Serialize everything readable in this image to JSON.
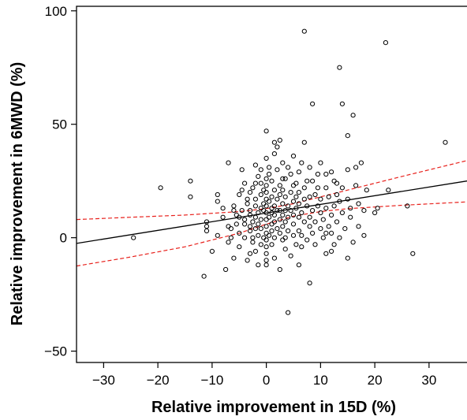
{
  "chart_data": {
    "type": "scatter",
    "title": "",
    "xlabel": "Relative improvement in 15D (%)",
    "ylabel": "Relative improvement in 6MWD (%)",
    "xlim": [
      -35,
      37
    ],
    "ylim": [
      -55,
      102
    ],
    "xticks": [
      -30,
      -20,
      -10,
      0,
      10,
      20,
      30
    ],
    "yticks": [
      -50,
      0,
      50,
      100
    ],
    "xtick_labels": [
      "−30",
      "−20",
      "−10",
      "0",
      "10",
      "20",
      "30"
    ],
    "ytick_labels": [
      "−50",
      "0",
      "50",
      "100"
    ],
    "grid": false,
    "legend": "none",
    "marker": "open-circle",
    "points": [
      [
        -24.5,
        0
      ],
      [
        -19.5,
        22
      ],
      [
        -14,
        25
      ],
      [
        -14,
        18
      ],
      [
        -11.5,
        -17
      ],
      [
        -11,
        5
      ],
      [
        -11,
        7
      ],
      [
        -11,
        3
      ],
      [
        -9,
        19
      ],
      [
        -9,
        16
      ],
      [
        -8,
        13
      ],
      [
        -8,
        9
      ],
      [
        -7.5,
        -14
      ],
      [
        -7,
        33
      ],
      [
        -7,
        5
      ],
      [
        -6.5,
        4
      ],
      [
        -6.5,
        0
      ],
      [
        -6,
        -9
      ],
      [
        -6,
        12
      ],
      [
        -5.5,
        10
      ],
      [
        -5.5,
        6
      ],
      [
        -5,
        19
      ],
      [
        -5,
        2
      ],
      [
        -5,
        -4
      ],
      [
        -4.5,
        30
      ],
      [
        -4.5,
        21
      ],
      [
        -4.5,
        12
      ],
      [
        -4,
        6
      ],
      [
        -4,
        8
      ],
      [
        -4,
        0
      ],
      [
        -3.5,
        15
      ],
      [
        -3.5,
        17
      ],
      [
        -3.5,
        -10
      ],
      [
        -3,
        5
      ],
      [
        -3,
        10
      ],
      [
        -3,
        12
      ],
      [
        -3,
        3
      ],
      [
        -3,
        20
      ],
      [
        -2.5,
        22
      ],
      [
        -2.5,
        7
      ],
      [
        -2.5,
        -2
      ],
      [
        -2.5,
        0
      ],
      [
        -2,
        14
      ],
      [
        -2,
        24
      ],
      [
        -2,
        9
      ],
      [
        -2,
        -6
      ],
      [
        -2,
        4
      ],
      [
        -2,
        17
      ],
      [
        -1.5,
        27
      ],
      [
        -1.5,
        11
      ],
      [
        -1.5,
        1
      ],
      [
        -1.5,
        -12
      ],
      [
        -1.5,
        6
      ],
      [
        -1,
        13
      ],
      [
        -1,
        19
      ],
      [
        -1,
        30
      ],
      [
        -1,
        4
      ],
      [
        -1,
        8
      ],
      [
        -1,
        -3
      ],
      [
        -0.5,
        12
      ],
      [
        -0.5,
        21
      ],
      [
        -0.5,
        0
      ],
      [
        -0.5,
        15
      ],
      [
        0,
        47
      ],
      [
        0,
        35
      ],
      [
        0,
        26
      ],
      [
        0,
        23
      ],
      [
        0,
        20
      ],
      [
        0,
        17
      ],
      [
        0,
        14
      ],
      [
        0,
        11
      ],
      [
        0,
        8
      ],
      [
        0,
        5
      ],
      [
        0,
        2
      ],
      [
        0,
        -1
      ],
      [
        0,
        -4
      ],
      [
        0,
        -7
      ],
      [
        0,
        -10
      ],
      [
        0,
        -12
      ],
      [
        0.5,
        9
      ],
      [
        0.5,
        16
      ],
      [
        0.5,
        1
      ],
      [
        0.5,
        28
      ],
      [
        1,
        13
      ],
      [
        1,
        18
      ],
      [
        1,
        25
      ],
      [
        1,
        6
      ],
      [
        1,
        3
      ],
      [
        1,
        -3
      ],
      [
        1,
        11
      ],
      [
        1.5,
        42
      ],
      [
        1.5,
        21
      ],
      [
        1.5,
        10
      ],
      [
        1.5,
        14
      ],
      [
        1.5,
        7
      ],
      [
        1.5,
        -9
      ],
      [
        1.5,
        0
      ],
      [
        2,
        30
      ],
      [
        2,
        17
      ],
      [
        2,
        4
      ],
      [
        2,
        12
      ],
      [
        2,
        40
      ],
      [
        2.5,
        23
      ],
      [
        2.5,
        8
      ],
      [
        2.5,
        19
      ],
      [
        2.5,
        43
      ],
      [
        2.5,
        -14
      ],
      [
        2.5,
        2
      ],
      [
        3,
        15
      ],
      [
        3,
        10
      ],
      [
        3,
        26
      ],
      [
        3,
        5
      ],
      [
        3,
        -1
      ],
      [
        3,
        33
      ],
      [
        3,
        21
      ],
      [
        3.5,
        12
      ],
      [
        3.5,
        -5
      ],
      [
        3.5,
        7
      ],
      [
        3.5,
        18
      ],
      [
        3.5,
        0
      ],
      [
        4,
        31
      ],
      [
        4,
        9
      ],
      [
        4,
        14
      ],
      [
        4,
        3
      ],
      [
        4,
        -33
      ],
      [
        4.5,
        20
      ],
      [
        4.5,
        12
      ],
      [
        4.5,
        28
      ],
      [
        4.5,
        -8
      ],
      [
        5,
        16
      ],
      [
        5,
        6
      ],
      [
        5,
        23
      ],
      [
        5,
        10
      ],
      [
        5,
        1
      ],
      [
        5.5,
        13
      ],
      [
        5.5,
        18
      ],
      [
        5.5,
        -3
      ],
      [
        5.5,
        24
      ],
      [
        6,
        9
      ],
      [
        6,
        15
      ],
      [
        6,
        29
      ],
      [
        6,
        3
      ],
      [
        6,
        20
      ],
      [
        6.5,
        11
      ],
      [
        6.5,
        1
      ],
      [
        6.5,
        -4
      ],
      [
        7,
        42
      ],
      [
        7,
        91
      ],
      [
        7,
        17
      ],
      [
        7,
        22
      ],
      [
        7,
        7
      ],
      [
        7.5,
        14
      ],
      [
        7.5,
        25
      ],
      [
        7.5,
        -1
      ],
      [
        8,
        9
      ],
      [
        8,
        31
      ],
      [
        8,
        -20
      ],
      [
        8,
        5
      ],
      [
        8.5,
        59
      ],
      [
        8.5,
        25
      ],
      [
        8.5,
        12
      ],
      [
        8.5,
        2
      ],
      [
        9,
        19
      ],
      [
        9,
        7
      ],
      [
        9,
        -3
      ],
      [
        9.5,
        14
      ],
      [
        9.5,
        22
      ],
      [
        10,
        11
      ],
      [
        10,
        33
      ],
      [
        10,
        4
      ],
      [
        10,
        17
      ],
      [
        10.5,
        8
      ],
      [
        10.5,
        0
      ],
      [
        11,
        22
      ],
      [
        11,
        13
      ],
      [
        11,
        -7
      ],
      [
        11,
        28
      ],
      [
        11.5,
        5
      ],
      [
        11.5,
        18
      ],
      [
        12,
        29
      ],
      [
        12,
        10
      ],
      [
        12,
        2
      ],
      [
        12,
        -6
      ],
      [
        12.5,
        14
      ],
      [
        12.5,
        25
      ],
      [
        13,
        19
      ],
      [
        13,
        7
      ],
      [
        13.5,
        75
      ],
      [
        13.5,
        16
      ],
      [
        13.5,
        0
      ],
      [
        14,
        59
      ],
      [
        14,
        11
      ],
      [
        14,
        22
      ],
      [
        14.5,
        4
      ],
      [
        15,
        45
      ],
      [
        15,
        17
      ],
      [
        15,
        30
      ],
      [
        15.5,
        13
      ],
      [
        15.5,
        9
      ],
      [
        16,
        54
      ],
      [
        16,
        -2
      ],
      [
        16.5,
        23
      ],
      [
        16.5,
        31
      ],
      [
        17,
        15
      ],
      [
        17,
        5
      ],
      [
        17.5,
        33
      ],
      [
        18,
        12
      ],
      [
        18.5,
        21
      ],
      [
        20,
        11
      ],
      [
        20.5,
        13
      ],
      [
        22,
        86
      ],
      [
        22.5,
        21
      ],
      [
        26,
        14
      ],
      [
        27,
        -7
      ],
      [
        33,
        42
      ],
      [
        -10,
        -6
      ],
      [
        -9,
        1
      ],
      [
        -7,
        -2
      ],
      [
        -6,
        14
      ],
      [
        -5,
        9
      ],
      [
        -4,
        24
      ],
      [
        -3,
        -7
      ],
      [
        -2,
        32
      ],
      [
        -1,
        24
      ],
      [
        0.5,
        31
      ],
      [
        1.5,
        37
      ],
      [
        2.5,
        12
      ],
      [
        3.5,
        26
      ],
      [
        5,
        36
      ],
      [
        6,
        -12
      ],
      [
        6.5,
        33
      ],
      [
        8,
        18
      ],
      [
        9.5,
        28
      ],
      [
        11,
        2
      ],
      [
        12.5,
        -3
      ],
      [
        13,
        24
      ],
      [
        15,
        -9
      ],
      [
        18,
        1
      ]
    ],
    "fit_line": {
      "style": "solid",
      "color": "#000000",
      "x": [
        -35,
        37
      ],
      "y": [
        -2.5,
        25
      ]
    },
    "confidence_band": {
      "style": "dashed",
      "color": "#e8211c",
      "upper": {
        "x": [
          -35,
          -25,
          -15,
          -5,
          0,
          5,
          10,
          15,
          25,
          37
        ],
        "y": [
          8,
          9,
          10,
          11.5,
          12.8,
          15,
          18,
          21,
          27,
          34
        ]
      },
      "lower": {
        "x": [
          -35,
          -25,
          -15,
          -5,
          0,
          5,
          10,
          15,
          25,
          37
        ],
        "y": [
          -12.5,
          -8.5,
          -4,
          2,
          6,
          9.5,
          11.5,
          12.8,
          14.3,
          15.8
        ]
      }
    }
  }
}
